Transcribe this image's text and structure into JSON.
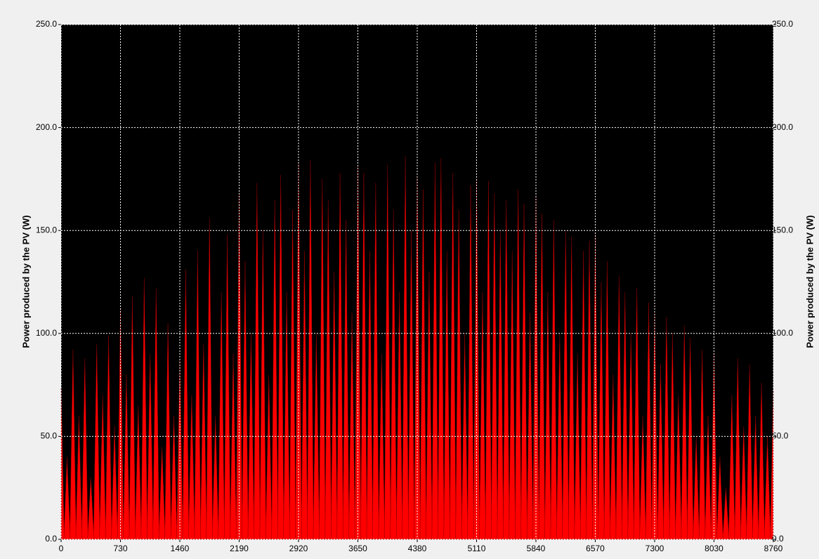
{
  "chart_data": {
    "type": "bar",
    "y_label": "Power produced by the PV (W)",
    "y2_label": "Power produced by the PV (W)",
    "color": "#ff0000",
    "background": "#000000",
    "grid": true,
    "xlim": [
      0,
      8760
    ],
    "xticks": [
      0,
      730,
      1460,
      2190,
      2920,
      3650,
      4380,
      5110,
      5840,
      6570,
      7300,
      8030,
      8760
    ],
    "ylim": [
      0,
      250
    ],
    "yticks": [
      {
        "value": 0,
        "label": "0.0"
      },
      {
        "value": 50,
        "label": "50.0"
      },
      {
        "value": 100,
        "label": "100.0"
      },
      {
        "value": 150,
        "label": "150.0"
      },
      {
        "value": 200,
        "label": "200.0"
      },
      {
        "value": 250,
        "label": "250.0"
      }
    ],
    "y2lim": [
      0,
      250
    ],
    "y2ticks": [
      {
        "value": 0,
        "label": "0.0"
      },
      {
        "value": 50,
        "label": "50.0"
      },
      {
        "value": 100,
        "label": "100.0"
      },
      {
        "value": 150,
        "label": "150.0"
      },
      {
        "value": 200,
        "label": "200.0"
      },
      {
        "value": 250,
        "label": "250.0"
      }
    ],
    "x": [
      0,
      73,
      146,
      219,
      292,
      365,
      438,
      511,
      584,
      657,
      730,
      803,
      876,
      949,
      1022,
      1095,
      1168,
      1241,
      1314,
      1387,
      1460,
      1533,
      1606,
      1679,
      1752,
      1825,
      1898,
      1971,
      2044,
      2117,
      2190,
      2263,
      2336,
      2409,
      2482,
      2555,
      2628,
      2701,
      2774,
      2847,
      2920,
      2993,
      3066,
      3139,
      3212,
      3285,
      3358,
      3431,
      3504,
      3577,
      3650,
      3723,
      3796,
      3869,
      3942,
      4015,
      4088,
      4161,
      4234,
      4307,
      4380,
      4453,
      4526,
      4599,
      4672,
      4745,
      4818,
      4891,
      4964,
      5037,
      5110,
      5183,
      5256,
      5329,
      5402,
      5475,
      5548,
      5621,
      5694,
      5767,
      5840,
      5913,
      5986,
      6059,
      6132,
      6205,
      6278,
      6351,
      6424,
      6497,
      6570,
      6643,
      6716,
      6789,
      6862,
      6935,
      7008,
      7081,
      7154,
      7227,
      7300,
      7373,
      7446,
      7519,
      7592,
      7665,
      7738,
      7811,
      7884,
      7957,
      8030,
      8103,
      8176,
      8249,
      8322,
      8395,
      8468,
      8541,
      8614,
      8687,
      8760
    ],
    "values": [
      74,
      40,
      92,
      60,
      88,
      30,
      95,
      70,
      99,
      55,
      112,
      80,
      118,
      65,
      127,
      90,
      122,
      45,
      105,
      60,
      87,
      131,
      70,
      140,
      95,
      156,
      60,
      120,
      148,
      90,
      168,
      135,
      100,
      173,
      150,
      80,
      165,
      177,
      120,
      160,
      183,
      140,
      184,
      100,
      175,
      165,
      130,
      178,
      155,
      110,
      181,
      178,
      140,
      173,
      90,
      182,
      160,
      120,
      186,
      150,
      176,
      170,
      130,
      183,
      185,
      140,
      178,
      160,
      100,
      172,
      175,
      120,
      174,
      168,
      150,
      165,
      140,
      170,
      163,
      110,
      167,
      158,
      120,
      155,
      100,
      150,
      147,
      90,
      140,
      145,
      148,
      125,
      135,
      80,
      128,
      120,
      100,
      122,
      60,
      115,
      110,
      85,
      108,
      100,
      70,
      104,
      98,
      50,
      92,
      60,
      90,
      40,
      25,
      70,
      88,
      55,
      85,
      60,
      76,
      50,
      72
    ]
  }
}
